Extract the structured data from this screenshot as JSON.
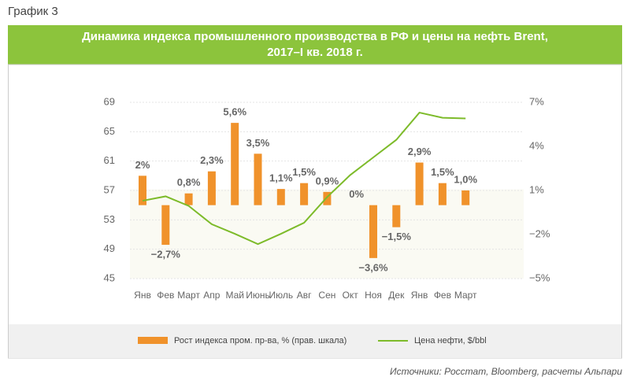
{
  "header": "График 3",
  "chart_data": {
    "type": "combo",
    "title": [
      "Динамика индекса промышленного производства в РФ и цены на нефть Brent,",
      "2017–I кв. 2018 г."
    ],
    "categories": [
      "Янв",
      "Фев",
      "Март",
      "Апр",
      "Май",
      "Июнь",
      "Июль",
      "Авг",
      "Сен",
      "Окт",
      "Ноя",
      "Дек",
      "Янв",
      "Фев",
      "Март"
    ],
    "ylim": [
      45,
      69
    ],
    "yticks": [
      45,
      49,
      53,
      57,
      61,
      65,
      69
    ],
    "y2lim": [
      -5,
      7
    ],
    "y2ticks": [
      {
        "value": -5,
        "label": "−5%"
      },
      {
        "value": -2,
        "label": "−2%"
      },
      {
        "value": 1,
        "label": "1%"
      },
      {
        "value": 4,
        "label": "4%"
      },
      {
        "value": 7,
        "label": "7%"
      }
    ],
    "grid": true,
    "series": [
      {
        "name": "Рост индекса пром. пр-ва, % (прав. шкала)",
        "type": "bar",
        "axis": "y2",
        "color": "#f0922b",
        "values": [
          2,
          -2.7,
          0.8,
          2.3,
          5.6,
          3.5,
          1.1,
          1.5,
          0.9,
          0,
          -3.6,
          -1.5,
          2.9,
          1.5,
          1.0
        ],
        "value_labels": [
          "2%",
          "−2,7%",
          "0,8%",
          "2,3%",
          "5,6%",
          "3,5%",
          "1,1%",
          "1,5%",
          "0,9%",
          "0%",
          "−3,6%",
          "−1,5%",
          "2,9%",
          "1,5%",
          "1,0%"
        ]
      },
      {
        "name": "Цена нефти, $/bbl",
        "type": "line",
        "axis": "y",
        "color": "#7dbb2a",
        "values": [
          55.6,
          56.2,
          54.9,
          52.4,
          51.1,
          49.7,
          51.1,
          52.6,
          56.1,
          59.1,
          61.5,
          63.9,
          67.6,
          66.9,
          66.8
        ]
      }
    ]
  },
  "source": "Источники: Росстат, Bloomberg, расчеты Альпари"
}
